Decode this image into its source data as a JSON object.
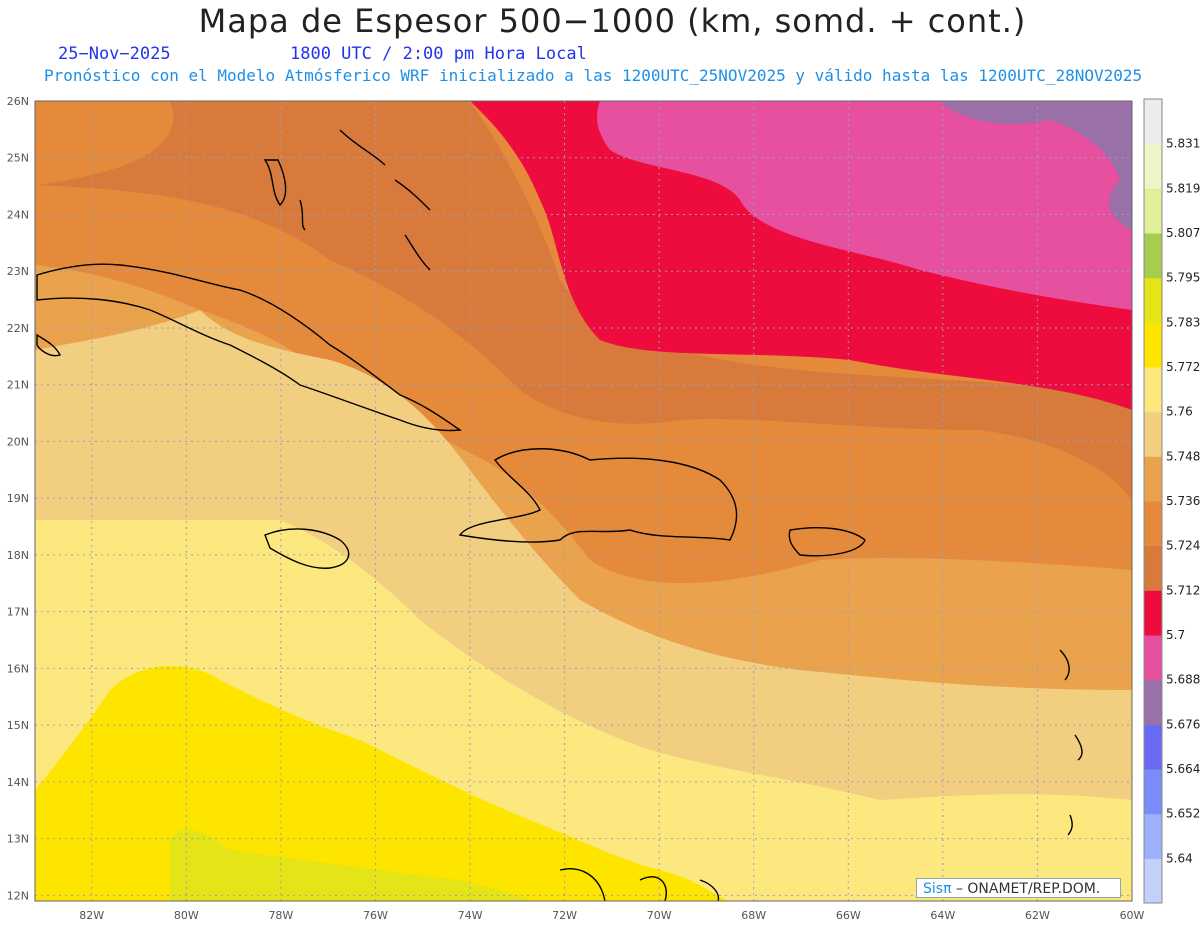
{
  "header": {
    "title": "Mapa de Espesor 500−1000 (km, somd. + cont.)",
    "date": "25−Nov−2025",
    "time": "1800 UTC / 2:00 pm Hora Local",
    "description": "Pronóstico con el Modelo Atmósferico WRF inicializado a las 1200UTC_25NOV2025 y válido hasta las  1200UTC_28NOV2025"
  },
  "map": {
    "lon_range": [
      -83.2,
      -60
    ],
    "lat_range": [
      11.9,
      26
    ],
    "lat_ticks": [
      "12N",
      "13N",
      "14N",
      "15N",
      "16N",
      "17N",
      "18N",
      "19N",
      "20N",
      "21N",
      "22N",
      "23N",
      "24N",
      "25N",
      "26N"
    ],
    "lon_ticks": [
      "82W",
      "80W",
      "78W",
      "76W",
      "74W",
      "72W",
      "70W",
      "68W",
      "66W",
      "64W",
      "62W",
      "60W"
    ],
    "grid_lines": true
  },
  "colorbar": {
    "levels": [
      "5.64",
      "5.652",
      "5.664",
      "5.676",
      "5.688",
      "5.7",
      "5.712",
      "5.724",
      "5.736",
      "5.748",
      "5.76",
      "5.772",
      "5.783",
      "5.795",
      "5.807",
      "5.819",
      "5.831"
    ],
    "colors": [
      "#c4d0fa",
      "#9cb0fb",
      "#7a8cfa",
      "#6a6af5",
      "#9a70a8",
      "#e6509e",
      "#ee0c3e",
      "#d87a3c",
      "#e5893b",
      "#eba24d",
      "#f2ce80",
      "#fde880",
      "#fde500",
      "#e4e416",
      "#a8cc50",
      "#e0f09a",
      "#eef6c8",
      "#ececec"
    ]
  },
  "credit": {
    "logo": "Sisπ",
    "text": "– ONAMET/REP.DOM."
  }
}
